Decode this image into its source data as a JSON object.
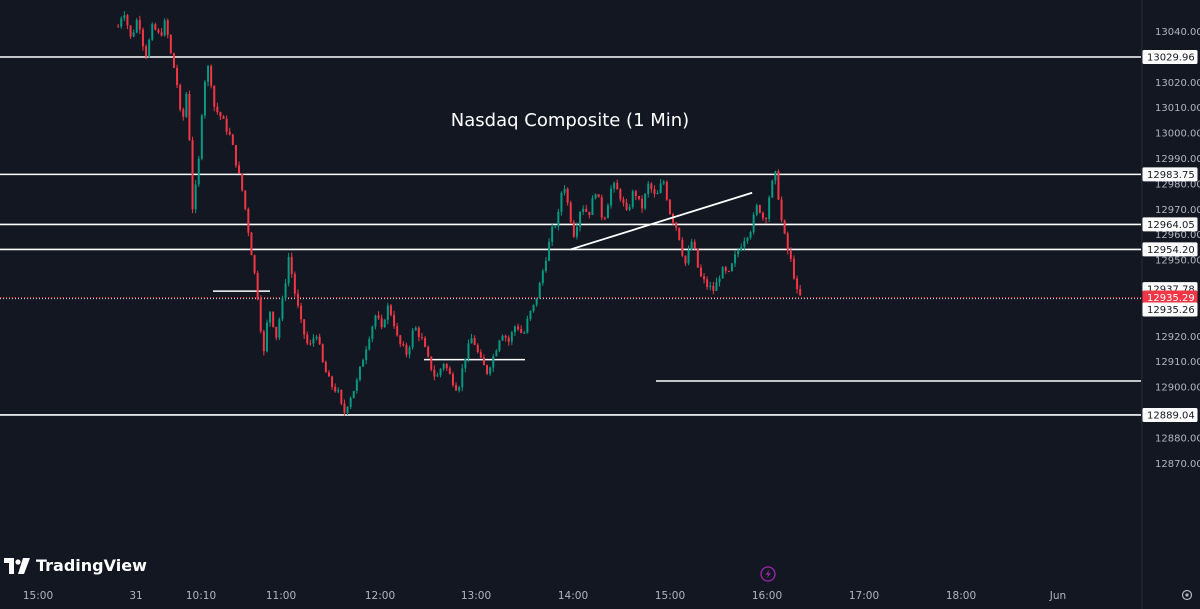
{
  "chart_data": {
    "type": "candlestick",
    "title": "Nasdaq Composite (1 Min)",
    "ylim": [
      12866,
      13049
    ],
    "y_ticks": [
      13040,
      13020,
      13010,
      13000,
      12990,
      12980,
      12970,
      12960,
      12950,
      12920,
      12910,
      12900,
      12880,
      12870
    ],
    "x_ticks": [
      "15:00",
      "31",
      "10:10",
      "11:00",
      "12:00",
      "13:00",
      "14:00",
      "15:00",
      "16:00",
      "17:00",
      "18:00",
      "Jun"
    ],
    "horizontal_levels": [
      {
        "value": 13029.96,
        "label": "13029.96"
      },
      {
        "value": 12983.75,
        "label": "12983.75"
      },
      {
        "value": 12964.05,
        "label": "12964.05"
      },
      {
        "value": 12954.2,
        "label": "12954.20"
      },
      {
        "value": 12889.04,
        "label": "12889.04"
      }
    ],
    "short_levels": [
      12937.78,
      12910.8,
      12902.4
    ],
    "current_price": {
      "value": 12935.29,
      "label": "12935.29",
      "color": "#f23645"
    },
    "extra_tags": [
      {
        "value": 12937.78,
        "label": "12937.78"
      },
      {
        "value": 12935.26,
        "label": "12935.26"
      }
    ],
    "trendline": {
      "from": [
        "13:40",
        12954.2
      ],
      "to": [
        "15:20",
        12976.5
      ]
    },
    "up_color": "#089981",
    "down_color": "#f23645",
    "price_path": [
      [
        "09:31",
        13042
      ],
      [
        "09:34",
        13049
      ],
      [
        "09:38",
        13037
      ],
      [
        "09:42",
        13046
      ],
      [
        "09:46",
        13030
      ],
      [
        "09:50",
        13042
      ],
      [
        "09:54",
        13038
      ],
      [
        "09:57",
        13044
      ],
      [
        "10:00",
        13031
      ],
      [
        "10:03",
        13022
      ],
      [
        "10:06",
        13002
      ],
      [
        "10:09",
        13018
      ],
      [
        "10:12",
        12970
      ],
      [
        "10:15",
        12985
      ],
      [
        "10:18",
        13019
      ],
      [
        "10:21",
        13027
      ],
      [
        "10:24",
        13010
      ],
      [
        "10:28",
        13006
      ],
      [
        "10:33",
        12998
      ],
      [
        "10:40",
        12975
      ],
      [
        "10:44",
        12955
      ],
      [
        "10:48",
        12935
      ],
      [
        "10:51",
        12912
      ],
      [
        "10:54",
        12932
      ],
      [
        "10:58",
        12920
      ],
      [
        "11:02",
        12936
      ],
      [
        "11:05",
        12952
      ],
      [
        "11:08",
        12938
      ],
      [
        "11:12",
        12924
      ],
      [
        "11:16",
        12915
      ],
      [
        "11:20",
        12922
      ],
      [
        "11:24",
        12908
      ],
      [
        "11:28",
        12901
      ],
      [
        "11:32",
        12898
      ],
      [
        "11:35",
        12889
      ],
      [
        "11:38",
        12895
      ],
      [
        "11:42",
        12901
      ],
      [
        "11:46",
        12912
      ],
      [
        "11:49",
        12920
      ],
      [
        "11:53",
        12929
      ],
      [
        "11:56",
        12922
      ],
      [
        "11:59",
        12932
      ],
      [
        "12:02",
        12928
      ],
      [
        "12:05",
        12918
      ],
      [
        "12:10",
        12913
      ],
      [
        "12:14",
        12924
      ],
      [
        "12:18",
        12919
      ],
      [
        "12:22",
        12910
      ],
      [
        "12:26",
        12903
      ],
      [
        "12:30",
        12910
      ],
      [
        "12:34",
        12904
      ],
      [
        "12:38",
        12899
      ],
      [
        "12:42",
        12912
      ],
      [
        "12:46",
        12920
      ],
      [
        "12:50",
        12911
      ],
      [
        "12:54",
        12906
      ],
      [
        "12:58",
        12913
      ],
      [
        "13:02",
        12922
      ],
      [
        "13:06",
        12918
      ],
      [
        "13:10",
        12925
      ],
      [
        "13:14",
        12920
      ],
      [
        "13:17",
        12928
      ],
      [
        "13:20",
        12932
      ],
      [
        "13:23",
        12940
      ],
      [
        "13:27",
        12953
      ],
      [
        "13:30",
        12962
      ],
      [
        "13:33",
        12966
      ],
      [
        "13:36",
        12982
      ],
      [
        "13:39",
        12970
      ],
      [
        "13:42",
        12960
      ],
      [
        "13:46",
        12972
      ],
      [
        "13:50",
        12968
      ],
      [
        "13:54",
        12978
      ],
      [
        "13:58",
        12965
      ],
      [
        "14:03",
        12980
      ],
      [
        "14:07",
        12976
      ],
      [
        "14:11",
        12968
      ],
      [
        "14:15",
        12978
      ],
      [
        "14:19",
        12970
      ],
      [
        "14:23",
        12980
      ],
      [
        "14:27",
        12974
      ],
      [
        "14:31",
        12982
      ],
      [
        "14:35",
        12968
      ],
      [
        "14:39",
        12962
      ],
      [
        "14:43",
        12948
      ],
      [
        "14:47",
        12958
      ],
      [
        "14:51",
        12944
      ],
      [
        "14:55",
        12940
      ],
      [
        "14:59",
        12938
      ],
      [
        "15:03",
        12946
      ],
      [
        "15:07",
        12944
      ],
      [
        "15:11",
        12952
      ],
      [
        "15:15",
        12958
      ],
      [
        "15:19",
        12962
      ],
      [
        "15:23",
        12972
      ],
      [
        "15:27",
        12965
      ],
      [
        "15:30",
        12978
      ],
      [
        "15:33",
        12984
      ],
      [
        "15:36",
        12966
      ],
      [
        "15:39",
        12955
      ],
      [
        "15:42",
        12948
      ],
      [
        "15:45",
        12936
      ],
      [
        "15:48",
        12935.26
      ]
    ]
  },
  "branding": {
    "logo_text": "TradingView"
  }
}
